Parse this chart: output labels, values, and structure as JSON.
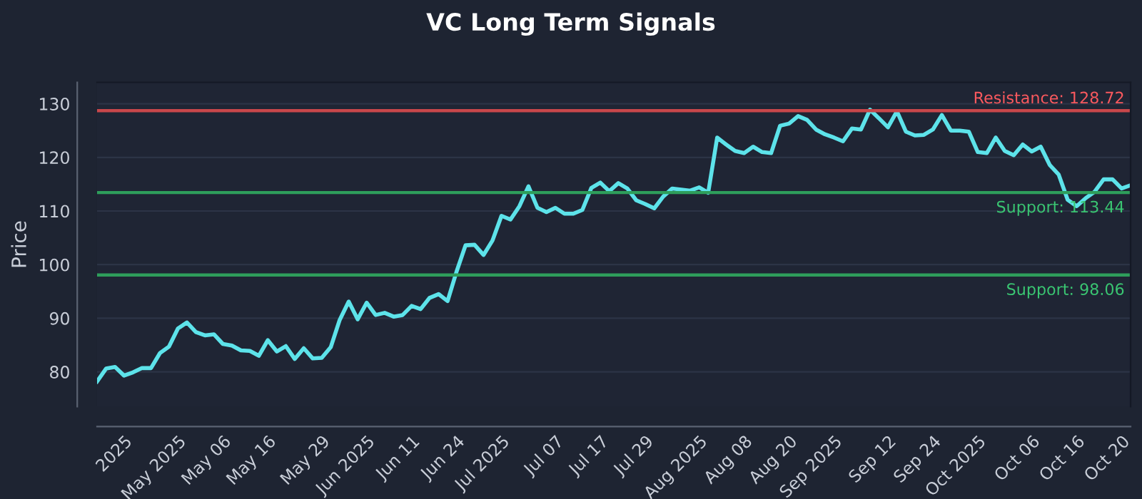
{
  "chart_data": {
    "type": "line",
    "title": "VC Long Term Signals",
    "ylabel": "Price",
    "categories": [
      null,
      null,
      null,
      "2025",
      null,
      null,
      null,
      null,
      null,
      "May 2025",
      null,
      null,
      null,
      null,
      "May 06",
      null,
      null,
      null,
      null,
      "May 16",
      null,
      null,
      null,
      null,
      null,
      "May 29",
      null,
      null,
      null,
      null,
      "Jun 2025",
      null,
      null,
      null,
      null,
      "Jun 11",
      null,
      null,
      null,
      null,
      "Jun 24",
      null,
      null,
      null,
      null,
      "Jul 2025",
      null,
      null,
      null,
      null,
      null,
      "Jul 07",
      null,
      null,
      null,
      null,
      "Jul 17",
      null,
      null,
      null,
      null,
      "Jul 29",
      null,
      null,
      null,
      null,
      null,
      "Aug 2025",
      null,
      null,
      null,
      null,
      "Aug 08",
      null,
      null,
      null,
      null,
      "Aug 20",
      null,
      null,
      null,
      null,
      "Sep 2025",
      null,
      null,
      null,
      null,
      null,
      "Sep 12",
      null,
      null,
      null,
      null,
      "Sep 24",
      null,
      null,
      null,
      null,
      "Oct 2025",
      null,
      null,
      null,
      null,
      null,
      "Oct 06",
      null,
      null,
      null,
      null,
      "Oct 16",
      null,
      null,
      null,
      null,
      "Oct 20",
      null
    ],
    "series": [
      {
        "color": "#5de3ea",
        "values": [
          78.2,
          80.6,
          80.9,
          79.3,
          79.9,
          80.7,
          80.7,
          83.5,
          84.7,
          88.1,
          89.2,
          87.4,
          86.8,
          87.0,
          85.2,
          84.9,
          84.0,
          83.9,
          83.0,
          85.9,
          83.8,
          84.8,
          82.4,
          84.4,
          82.5,
          82.6,
          84.6,
          89.7,
          93.1,
          89.8,
          92.9,
          90.6,
          91.0,
          90.3,
          90.6,
          92.3,
          91.7,
          93.8,
          94.5,
          93.2,
          98.7,
          103.6,
          103.7,
          101.8,
          104.5,
          109.1,
          108.4,
          110.9,
          114.6,
          110.6,
          109.8,
          110.6,
          109.5,
          109.5,
          110.2,
          114.3,
          115.3,
          113.7,
          115.2,
          114.2,
          112.0,
          111.3,
          110.5,
          112.7,
          114.2,
          114.0,
          113.8,
          114.4,
          113.4,
          123.7,
          122.4,
          121.2,
          120.8,
          122.0,
          121.0,
          120.8,
          125.9,
          126.3,
          127.7,
          127.0,
          125.2,
          124.3,
          123.7,
          123.0,
          125.4,
          125.2,
          128.9,
          127.3,
          125.6,
          128.6,
          124.8,
          124.1,
          124.2,
          125.2,
          127.9,
          125.0,
          125.0,
          124.8,
          121.0,
          120.8,
          123.7,
          121.2,
          120.4,
          122.4,
          121.1,
          122.0,
          118.6,
          116.8,
          112.1,
          110.9,
          112.4,
          113.6,
          115.9,
          115.9,
          114.2,
          114.8
        ]
      }
    ],
    "ylim": [
      73.5,
      134
    ],
    "yticks": [
      80,
      90,
      100,
      110,
      120,
      130
    ],
    "grid": "y",
    "ref_lines": [
      {
        "axis": "y",
        "value": 128.72,
        "label": "Resistance: 128.72",
        "color": "#c8474b"
      },
      {
        "axis": "y",
        "value": 113.44,
        "label": "Support: 113.44",
        "color": "#2e9e5b"
      },
      {
        "axis": "y",
        "value": 98.06,
        "label": "Support: 98.06",
        "color": "#2e9e5b"
      }
    ]
  }
}
